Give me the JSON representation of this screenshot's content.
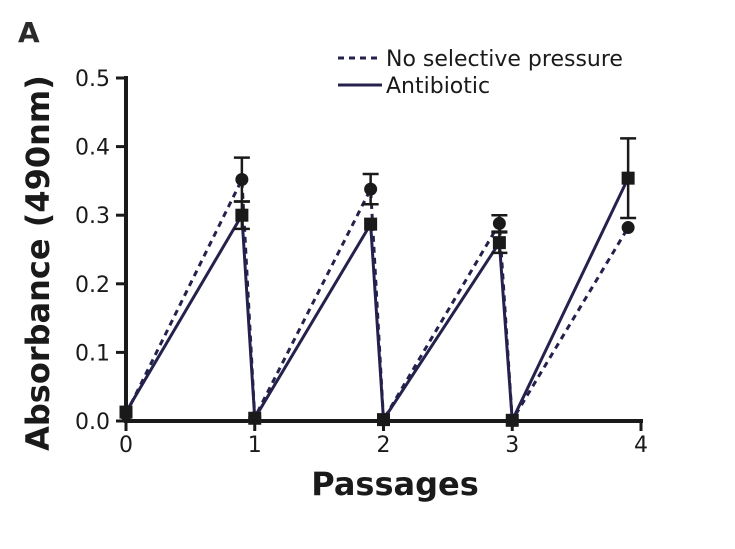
{
  "chart_data": {
    "type": "line",
    "panel_label": "A",
    "xlabel": "Passages",
    "ylabel": "Absorbance (490nm)",
    "xlim": [
      0,
      4
    ],
    "ylim": [
      0,
      0.5
    ],
    "x_ticks": [
      0,
      1,
      2,
      3,
      4
    ],
    "y_ticks": [
      0.0,
      0.1,
      0.2,
      0.3,
      0.4,
      0.5
    ],
    "x_tick_labels": [
      "0",
      "1",
      "2",
      "3",
      "4"
    ],
    "y_tick_labels": [
      "0.0",
      "0.1",
      "0.2",
      "0.3",
      "0.4",
      "0.5"
    ],
    "grid": false,
    "legend_position": "top-right",
    "series": [
      {
        "name": "No selective pressure",
        "line_style": "dashed",
        "marker": "circle",
        "color": "#24224d",
        "x": [
          0,
          0.9,
          1,
          1.9,
          2,
          2.9,
          3,
          3.9
        ],
        "y": [
          0.01,
          0.352,
          0.005,
          0.338,
          0.002,
          0.288,
          0.001,
          0.282
        ],
        "error": [
          0,
          0.032,
          0,
          0.022,
          0,
          0.012,
          0,
          0
        ]
      },
      {
        "name": "Antibiotic",
        "line_style": "solid",
        "marker": "square",
        "color": "#24224d",
        "x": [
          0,
          0.9,
          1,
          1.9,
          2,
          2.9,
          3,
          3.9
        ],
        "y": [
          0.013,
          0.3,
          0.004,
          0.287,
          0.002,
          0.26,
          0.001,
          0.354
        ],
        "error": [
          0,
          0.02,
          0,
          0,
          0,
          0.015,
          0,
          0.058
        ]
      }
    ]
  }
}
